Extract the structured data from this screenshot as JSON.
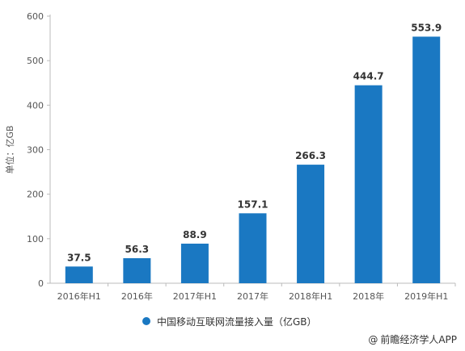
{
  "colors": {
    "bar": "#1a78c2",
    "axis": "#bbbbbb",
    "grid": "#e6e6e6",
    "text": "#555555"
  },
  "legend": {
    "label": "中国移动互联网流量接入量（亿GB）"
  },
  "source": {
    "icon": "at-icon",
    "icon_glyph": "@",
    "label": "前瞻经济学人APP"
  },
  "chart_data": {
    "type": "bar",
    "title": "",
    "xlabel": "",
    "ylabel": "单位：亿GB",
    "categories": [
      "2016年H1",
      "2016年",
      "2017年H1",
      "2017年",
      "2018年H1",
      "2018年",
      "2019年H1"
    ],
    "series": [
      {
        "name": "中国移动互联网流量接入量（亿GB）",
        "values": [
          37.5,
          56.3,
          88.9,
          157.1,
          266.3,
          444.7,
          553.9
        ]
      }
    ],
    "value_labels": [
      "37.5",
      "56.3",
      "88.9",
      "157.1",
      "266.3",
      "444.7",
      "553.9"
    ],
    "ylim": [
      0,
      600
    ],
    "yticks": [
      0,
      100,
      200,
      300,
      400,
      500,
      600
    ],
    "grid": false,
    "legend_position": "bottom"
  }
}
